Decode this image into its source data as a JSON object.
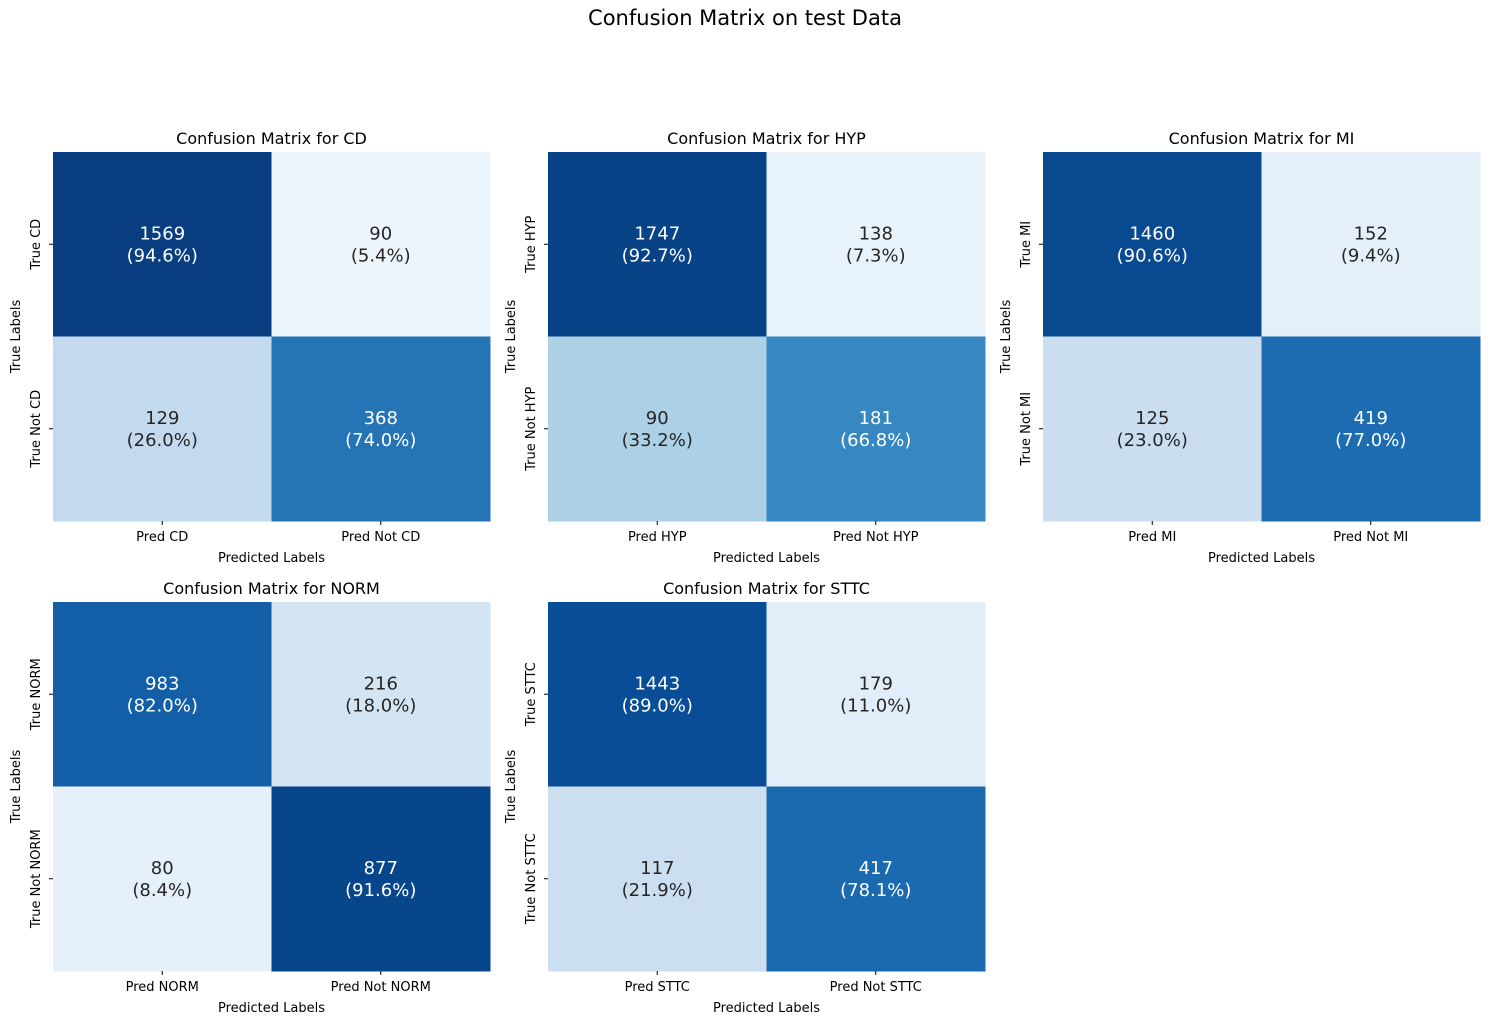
{
  "figure": {
    "title": "Confusion Matrix on test Data"
  },
  "chart_data": [
    {
      "type": "heatmap",
      "title": "Confusion Matrix for CD",
      "xlabel": "Predicted Labels",
      "ylabel": "True Labels",
      "x_tick_labels": [
        "Pred CD",
        "Pred Not CD"
      ],
      "y_tick_labels": [
        "True CD",
        "True Not CD"
      ],
      "values": [
        [
          1569,
          90
        ],
        [
          129,
          368
        ]
      ],
      "percent_labels": [
        [
          "(94.6%)",
          "(5.4%)"
        ],
        [
          "(26.0%)",
          "(74.0%)"
        ]
      ],
      "colormap": "Blues",
      "colorbar": false
    },
    {
      "type": "heatmap",
      "title": "Confusion Matrix for HYP",
      "xlabel": "Predicted Labels",
      "ylabel": "True Labels",
      "x_tick_labels": [
        "Pred HYP",
        "Pred Not HYP"
      ],
      "y_tick_labels": [
        "True HYP",
        "True Not HYP"
      ],
      "values": [
        [
          1747,
          138
        ],
        [
          90,
          181
        ]
      ],
      "percent_labels": [
        [
          "(92.7%)",
          "(7.3%)"
        ],
        [
          "(33.2%)",
          "(66.8%)"
        ]
      ],
      "colormap": "Blues",
      "colorbar": false
    },
    {
      "type": "heatmap",
      "title": "Confusion Matrix for MI",
      "xlabel": "Predicted Labels",
      "ylabel": "True Labels",
      "x_tick_labels": [
        "Pred MI",
        "Pred Not MI"
      ],
      "y_tick_labels": [
        "True MI",
        "True Not MI"
      ],
      "values": [
        [
          1460,
          152
        ],
        [
          125,
          419
        ]
      ],
      "percent_labels": [
        [
          "(90.6%)",
          "(9.4%)"
        ],
        [
          "(23.0%)",
          "(77.0%)"
        ]
      ],
      "colormap": "Blues",
      "colorbar": false
    },
    {
      "type": "heatmap",
      "title": "Confusion Matrix for NORM",
      "xlabel": "Predicted Labels",
      "ylabel": "True Labels",
      "x_tick_labels": [
        "Pred NORM",
        "Pred Not NORM"
      ],
      "y_tick_labels": [
        "True NORM",
        "True Not NORM"
      ],
      "values": [
        [
          983,
          216
        ],
        [
          80,
          877
        ]
      ],
      "percent_labels": [
        [
          "(82.0%)",
          "(18.0%)"
        ],
        [
          "(8.4%)",
          "(91.6%)"
        ]
      ],
      "colormap": "Blues",
      "colorbar": false
    },
    {
      "type": "heatmap",
      "title": "Confusion Matrix for STTC",
      "xlabel": "Predicted Labels",
      "ylabel": "True Labels",
      "x_tick_labels": [
        "Pred STTC",
        "Pred Not STTC"
      ],
      "y_tick_labels": [
        "True STTC",
        "True Not STTC"
      ],
      "values": [
        [
          1443,
          179
        ],
        [
          117,
          417
        ]
      ],
      "percent_labels": [
        [
          "(89.0%)",
          "(11.0%)"
        ],
        [
          "(21.9%)",
          "(78.1%)"
        ]
      ],
      "colormap": "Blues",
      "colorbar": false
    }
  ]
}
